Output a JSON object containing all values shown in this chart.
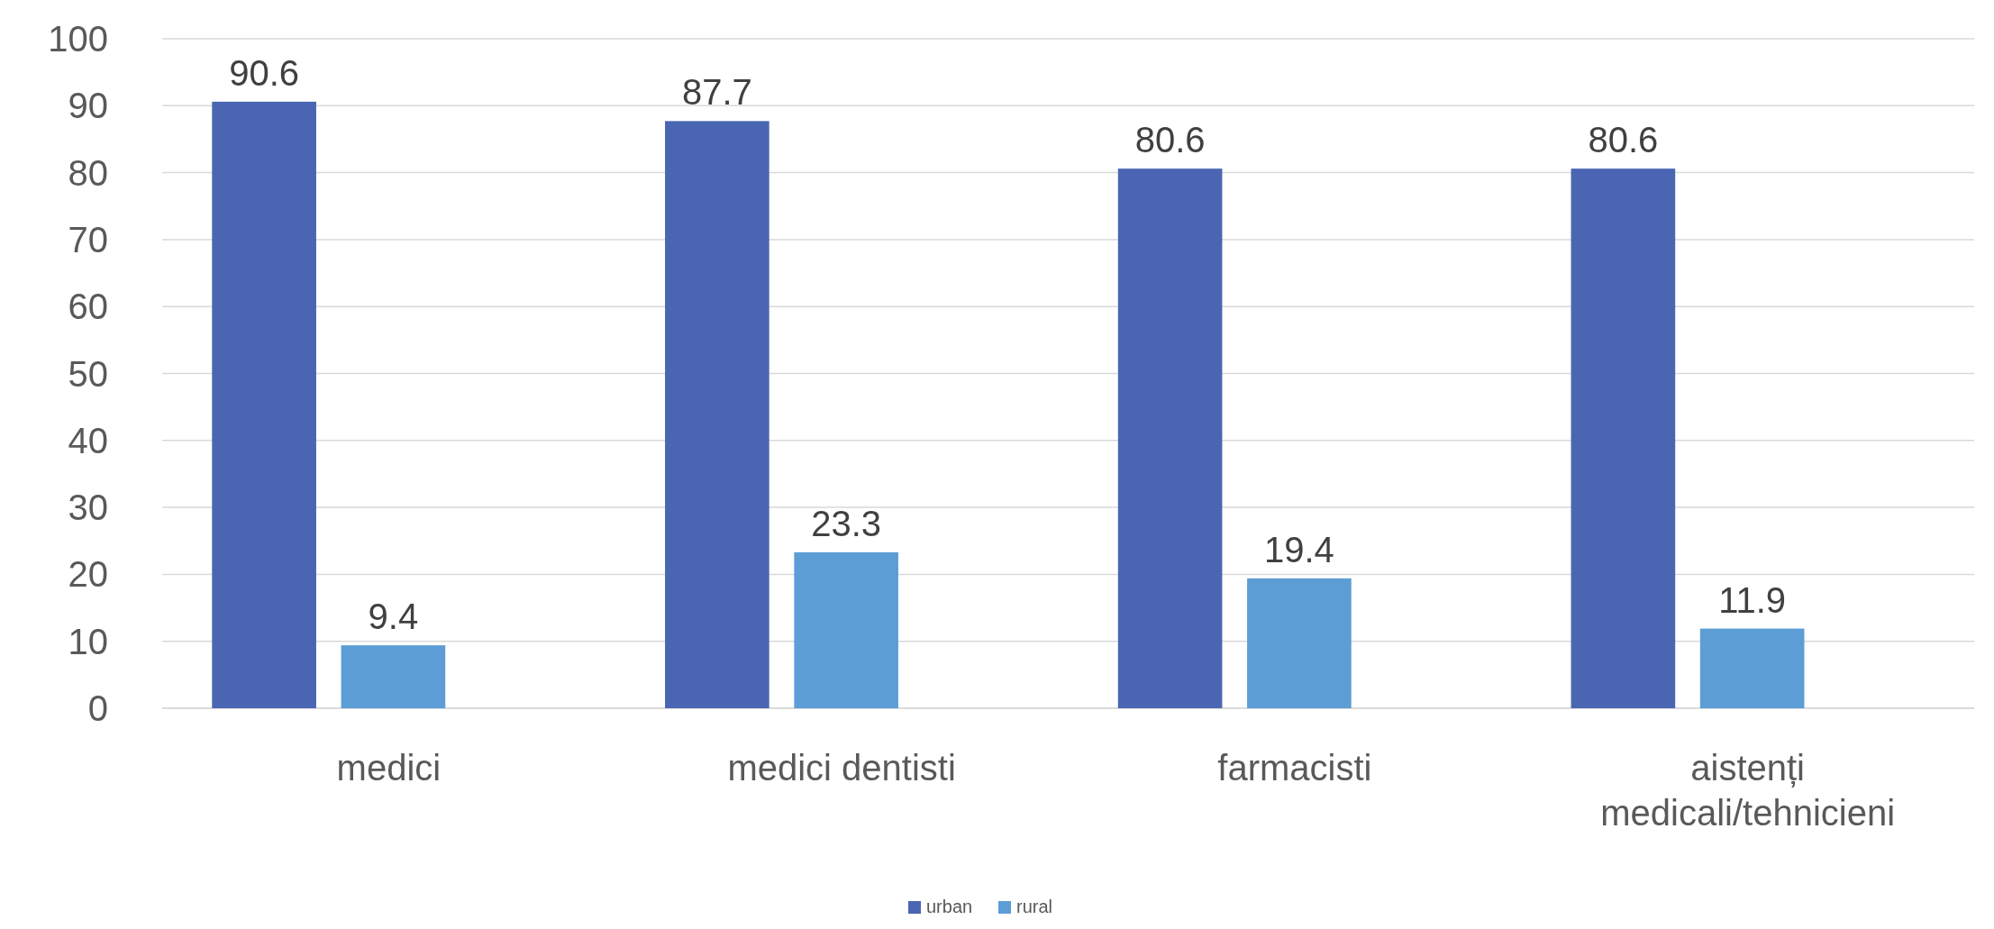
{
  "chart_data": {
    "type": "bar",
    "categories": [
      "medici",
      "medici dentisti",
      "farmacisti",
      "aistenți medicali/tehnicieni"
    ],
    "series": [
      {
        "name": "urban",
        "color": "#4a66b2",
        "values": [
          90.6,
          87.7,
          80.6,
          80.6
        ]
      },
      {
        "name": "rural",
        "color": "#5c9dd6",
        "values": [
          9.4,
          23.3,
          19.4,
          11.9
        ]
      }
    ],
    "ylim": [
      0,
      100
    ],
    "yticks": [
      0,
      10,
      20,
      30,
      40,
      50,
      60,
      70,
      80,
      90,
      100
    ],
    "grid": "y",
    "legend": "bottom",
    "data_labels": true
  }
}
